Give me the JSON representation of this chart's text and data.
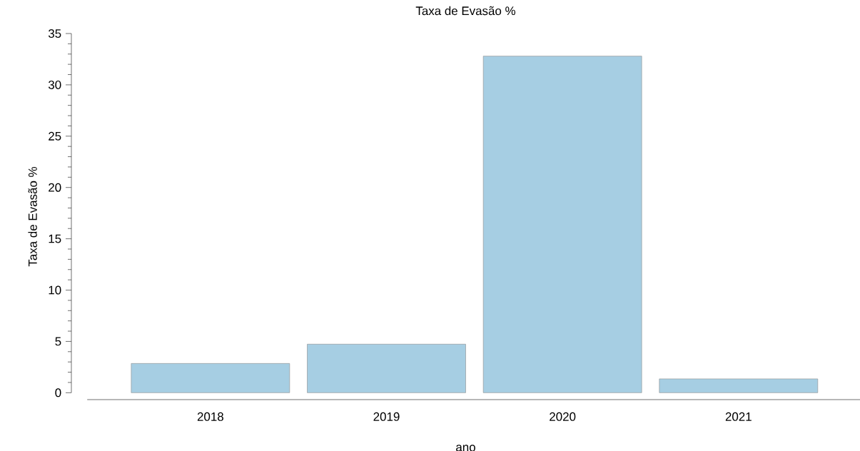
{
  "chart_data": {
    "type": "bar",
    "title": "Taxa de Evasão %",
    "xlabel": "ano",
    "ylabel": "Taxa de Evasão %",
    "categories": [
      "2018",
      "2019",
      "2020",
      "2021"
    ],
    "values": [
      2.85,
      4.73,
      32.8,
      1.35
    ],
    "color": "#a6cee3",
    "ylim": [
      0,
      35
    ],
    "yticks": [
      0,
      5,
      10,
      15,
      20,
      25,
      30,
      35
    ],
    "grid": false
  }
}
